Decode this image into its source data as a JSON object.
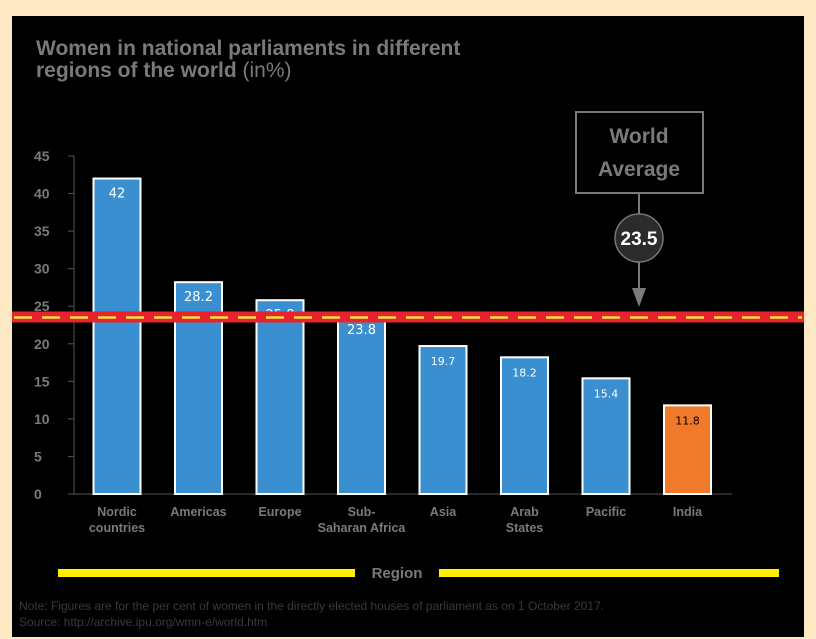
{
  "chart_data": {
    "type": "bar",
    "title_line1": "Women in  national parliaments in different",
    "title_line2": "regions of the world",
    "title_unit": "(in%)",
    "xlabel": "Region",
    "ylabel": "",
    "ylim": [
      0,
      45
    ],
    "yticks": [
      0,
      5,
      10,
      15,
      20,
      25,
      30,
      35,
      40,
      45
    ],
    "categories": [
      [
        "Nordic",
        "countries"
      ],
      [
        "Americas"
      ],
      [
        "Europe"
      ],
      [
        "Sub-",
        "Saharan Africa"
      ],
      [
        "Asia"
      ],
      [
        "Arab",
        "States"
      ],
      [
        "Pacific"
      ],
      [
        "India"
      ]
    ],
    "values": [
      42,
      28.2,
      25.8,
      23.8,
      19.7,
      18.2,
      15.4,
      11.8
    ],
    "value_labels": [
      "42",
      "28.2",
      "25.8",
      "23.8",
      "19.7",
      "18.2",
      "15.4",
      "11.8"
    ],
    "bar_colors": [
      "#3a8fd0",
      "#3a8fd0",
      "#3a8fd0",
      "#3a8fd0",
      "#3a8fd0",
      "#3a8fd0",
      "#3a8fd0",
      "#f07a2a"
    ],
    "reference_line": {
      "label_line1": "World",
      "label_line2": "Average",
      "value": 23.5,
      "value_label": "23.5"
    },
    "grid": false,
    "colors": {
      "background": "#000000",
      "page": "#fde9c4",
      "bar": "#3a8fd0",
      "highlight": "#f07a2a",
      "reference_line": "#e8242a",
      "reference_dash": "#f5e14b",
      "region_bar": "#ffee00",
      "text_muted": "#7a7a7a"
    }
  },
  "notes": [
    "Note: Figures are for the per cent of women in the directly elected houses of parliament as on 1 October 2017.",
    "Source: http://archive.ipu.org/wmn-e/world.htm"
  ]
}
